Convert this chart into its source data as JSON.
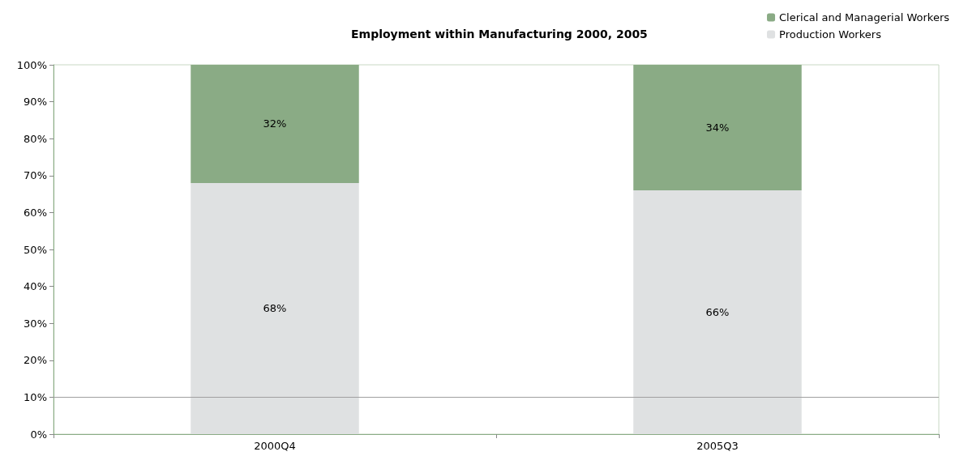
{
  "chart_data": {
    "type": "bar",
    "title": "Employment within Manufacturing 2000, 2005",
    "categories": [
      "2000Q4",
      "2005Q3"
    ],
    "stacked": true,
    "series": [
      {
        "name": "Production Workers",
        "color": "#dfe1e2",
        "values": [
          68,
          66
        ],
        "value_labels": [
          "68%",
          "66%"
        ]
      },
      {
        "name": "Clerical and Managerial Workers",
        "color": "#8aab85",
        "values": [
          32,
          34
        ],
        "value_labels": [
          "32%",
          "34%"
        ]
      }
    ],
    "ylim": [
      0,
      100
    ],
    "yticks": [
      {
        "value": 0,
        "label": "0%"
      },
      {
        "value": 10,
        "label": "10%"
      },
      {
        "value": 20,
        "label": "20%"
      },
      {
        "value": 30,
        "label": "30%"
      },
      {
        "value": 40,
        "label": "40%"
      },
      {
        "value": 50,
        "label": "50%"
      },
      {
        "value": 60,
        "label": "60%"
      },
      {
        "value": 70,
        "label": "70%"
      },
      {
        "value": 80,
        "label": "80%"
      },
      {
        "value": 90,
        "label": "90%"
      },
      {
        "value": 100,
        "label": "100%"
      }
    ],
    "ref_lines": [
      {
        "axis": "y",
        "value": 10,
        "color": "#a0a0a0"
      }
    ],
    "grid": false,
    "legend": "top right"
  }
}
